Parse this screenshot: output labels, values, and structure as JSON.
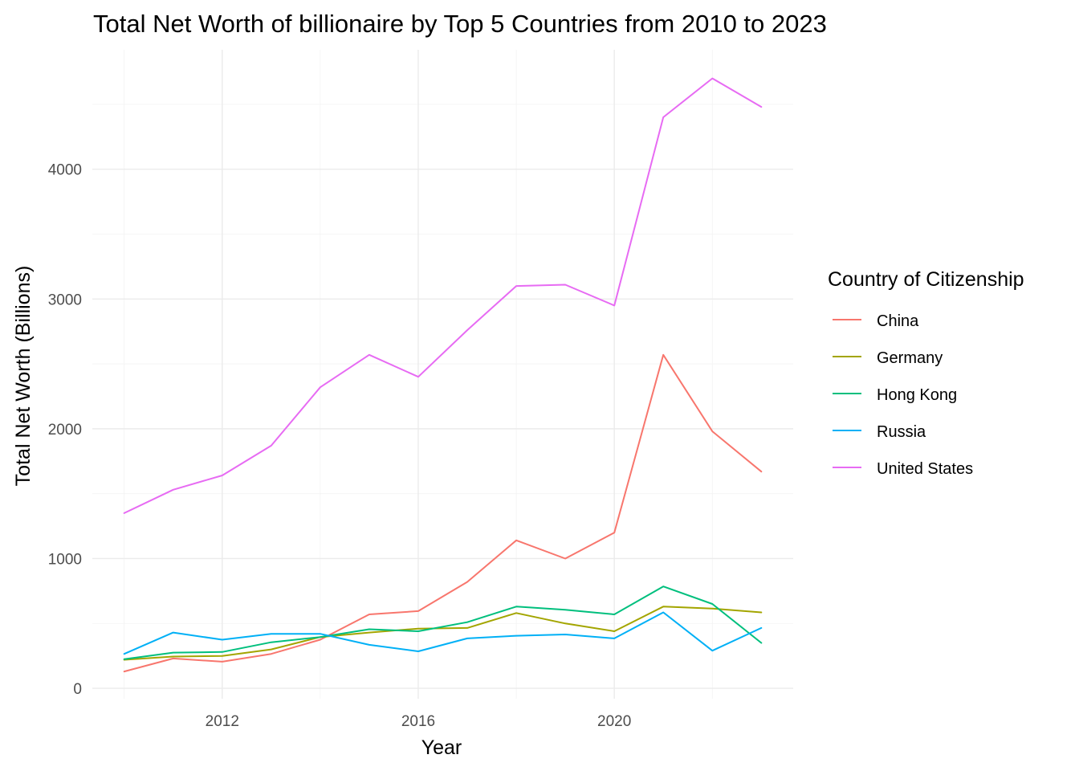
{
  "chart_data": {
    "type": "line",
    "title": "Total Net Worth of billionaire by Top 5 Countries from 2010 to 2023",
    "xlabel": "Year",
    "ylabel": "Total Net Worth (Billions)",
    "x": [
      2010,
      2011,
      2012,
      2013,
      2014,
      2015,
      2016,
      2017,
      2018,
      2019,
      2020,
      2021,
      2022,
      2023
    ],
    "xlim": [
      2009.35,
      2023.65
    ],
    "ylim": [
      -80,
      4920
    ],
    "x_ticks": [
      2012,
      2016,
      2020
    ],
    "x_tick_labels": [
      "2012",
      "2016",
      "2020"
    ],
    "y_ticks": [
      0,
      1000,
      2000,
      3000,
      4000
    ],
    "y_tick_labels": [
      "0",
      "1000",
      "2000",
      "3000",
      "4000"
    ],
    "grid": true,
    "legend": {
      "title": "Country of Citizenship",
      "placement": "right"
    },
    "series": [
      {
        "name": "China",
        "color": "#F8766D",
        "values": [
          130,
          230,
          205,
          265,
          375,
          570,
          595,
          820,
          1140,
          1000,
          1200,
          2570,
          1980,
          1670
        ]
      },
      {
        "name": "Germany",
        "color": "#A3A500",
        "values": [
          220,
          245,
          250,
          300,
          395,
          430,
          460,
          465,
          580,
          500,
          440,
          630,
          615,
          585
        ]
      },
      {
        "name": "Hong Kong",
        "color": "#00BF7D",
        "values": [
          225,
          275,
          280,
          355,
          395,
          455,
          440,
          510,
          630,
          605,
          570,
          785,
          650,
          350
        ]
      },
      {
        "name": "Russia",
        "color": "#00B0F6",
        "values": [
          265,
          430,
          375,
          420,
          420,
          335,
          285,
          385,
          405,
          415,
          385,
          585,
          290,
          465
        ]
      },
      {
        "name": "United States",
        "color": "#E76BF3",
        "values": [
          1350,
          1530,
          1640,
          1870,
          2320,
          2570,
          2400,
          2760,
          3100,
          3110,
          2950,
          4400,
          4700,
          4480
        ]
      }
    ]
  }
}
